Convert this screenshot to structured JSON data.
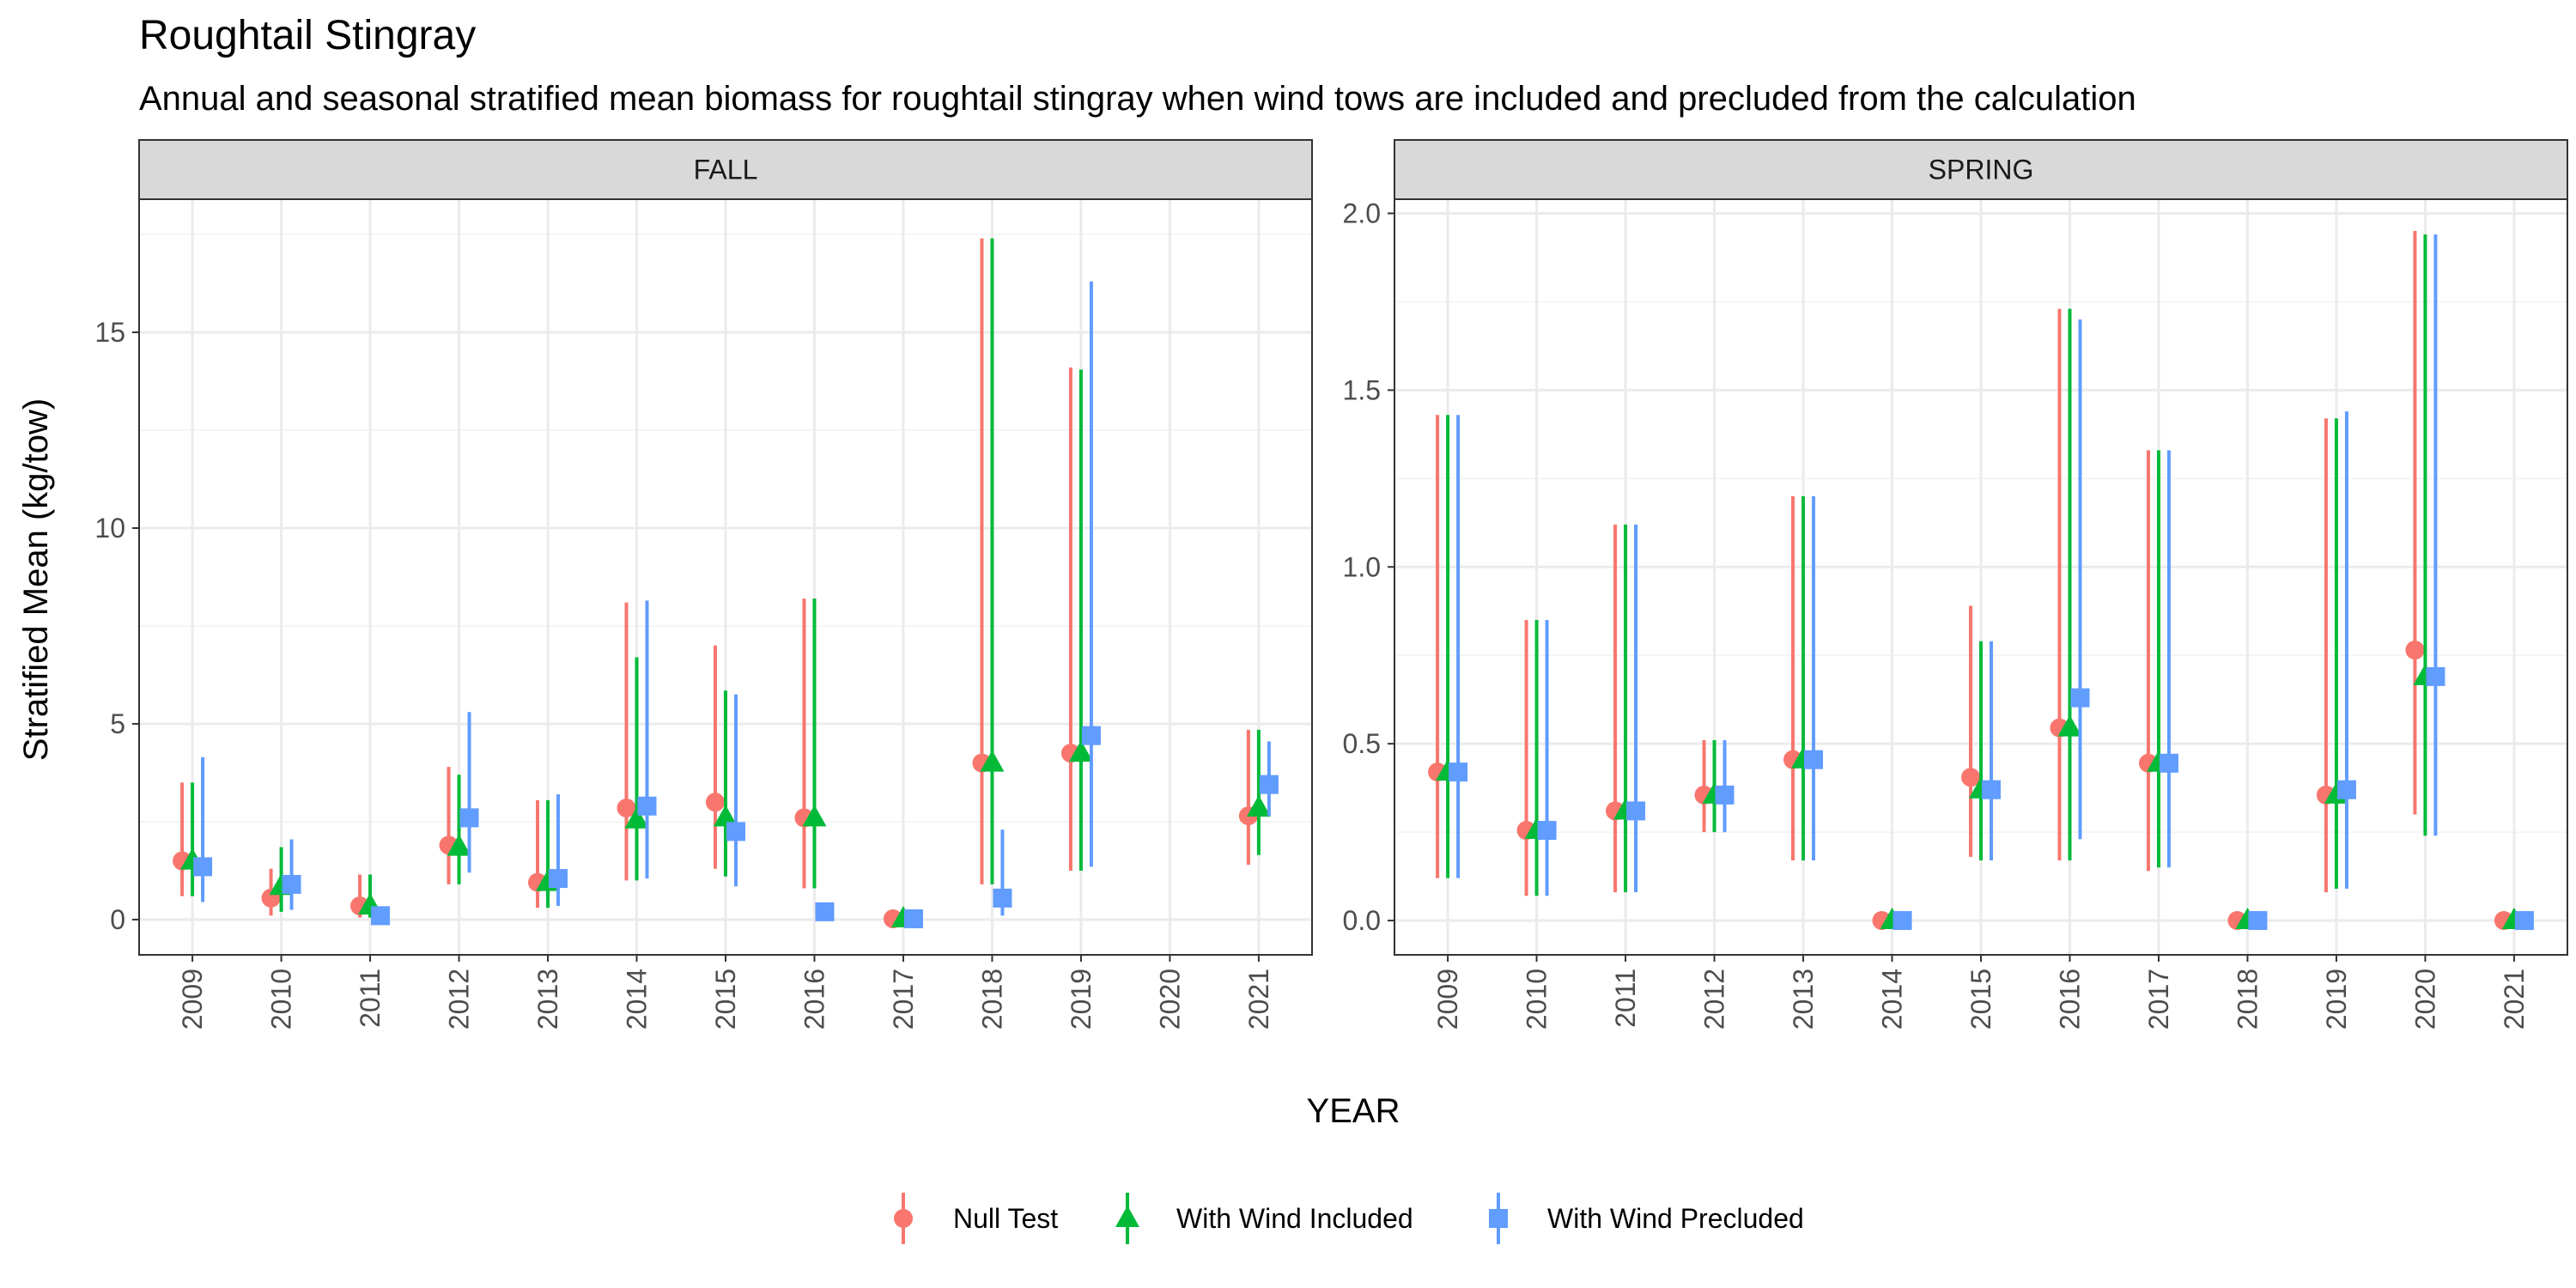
{
  "chart_data": {
    "type": "scatter",
    "title": "Roughtail Stingray",
    "subtitle": "Annual and seasonal stratified mean biomass for roughtail stingray when wind tows are included and precluded from the calculation",
    "xlabel": "YEAR",
    "ylabel": "Stratified Mean (kg/tow)",
    "categories": [
      "2009",
      "2010",
      "2011",
      "2012",
      "2013",
      "2014",
      "2015",
      "2016",
      "2017",
      "2018",
      "2019",
      "2020",
      "2021"
    ],
    "grid": true,
    "legend_position": "bottom",
    "legend": [
      {
        "name": "Null Test",
        "color": "#F8766D",
        "shape": "circle"
      },
      {
        "name": "With Wind Included",
        "color": "#00BA38",
        "shape": "triangle"
      },
      {
        "name": "With Wind Precluded",
        "color": "#619CFF",
        "shape": "square"
      }
    ],
    "panels": [
      {
        "strip": "FALL",
        "ylim": [
          -0.9,
          18.4
        ],
        "yticks": [
          0,
          5,
          10,
          15
        ],
        "series": [
          {
            "name": "Null Test",
            "points": [
              {
                "x": "2009",
                "y": 1.5,
                "lo": 0.6,
                "hi": 3.5
              },
              {
                "x": "2010",
                "y": 0.55,
                "lo": 0.1,
                "hi": 1.3
              },
              {
                "x": "2011",
                "y": 0.35,
                "lo": 0.05,
                "hi": 1.15
              },
              {
                "x": "2012",
                "y": 1.9,
                "lo": 0.9,
                "hi": 3.9
              },
              {
                "x": "2013",
                "y": 0.95,
                "lo": 0.3,
                "hi": 3.05
              },
              {
                "x": "2014",
                "y": 2.85,
                "lo": 1.0,
                "hi": 8.1
              },
              {
                "x": "2015",
                "y": 3.0,
                "lo": 1.3,
                "hi": 7.0
              },
              {
                "x": "2016",
                "y": 2.6,
                "lo": 0.8,
                "hi": 8.2
              },
              {
                "x": "2017",
                "y": 0.02,
                "lo": 0.0,
                "hi": 0.05
              },
              {
                "x": "2018",
                "y": 4.0,
                "lo": 0.9,
                "hi": 17.4
              },
              {
                "x": "2019",
                "y": 4.25,
                "lo": 1.25,
                "hi": 14.1
              },
              {
                "x": "2021",
                "y": 2.65,
                "lo": 1.4,
                "hi": 4.85
              }
            ]
          },
          {
            "name": "With Wind Included",
            "points": [
              {
                "x": "2009",
                "y": 1.5,
                "lo": 0.6,
                "hi": 3.5
              },
              {
                "x": "2010",
                "y": 0.85,
                "lo": 0.2,
                "hi": 1.85
              },
              {
                "x": "2011",
                "y": 0.35,
                "lo": 0.05,
                "hi": 1.15
              },
              {
                "x": "2012",
                "y": 1.85,
                "lo": 0.9,
                "hi": 3.7
              },
              {
                "x": "2013",
                "y": 0.95,
                "lo": 0.3,
                "hi": 3.05
              },
              {
                "x": "2014",
                "y": 2.55,
                "lo": 1.0,
                "hi": 6.7
              },
              {
                "x": "2015",
                "y": 2.6,
                "lo": 1.1,
                "hi": 5.85
              },
              {
                "x": "2016",
                "y": 2.6,
                "lo": 0.8,
                "hi": 8.2
              },
              {
                "x": "2017",
                "y": 0.02,
                "lo": 0.0,
                "hi": 0.05
              },
              {
                "x": "2018",
                "y": 4.0,
                "lo": 0.9,
                "hi": 17.4
              },
              {
                "x": "2019",
                "y": 4.25,
                "lo": 1.25,
                "hi": 14.05
              },
              {
                "x": "2021",
                "y": 2.85,
                "lo": 1.65,
                "hi": 4.85
              }
            ]
          },
          {
            "name": "With Wind Precluded",
            "points": [
              {
                "x": "2009",
                "y": 1.35,
                "lo": 0.45,
                "hi": 4.15
              },
              {
                "x": "2010",
                "y": 0.9,
                "lo": 0.25,
                "hi": 2.05
              },
              {
                "x": "2011",
                "y": 0.1,
                "lo": 0.0,
                "hi": 0.2
              },
              {
                "x": "2012",
                "y": 2.6,
                "lo": 1.2,
                "hi": 5.3
              },
              {
                "x": "2013",
                "y": 1.05,
                "lo": 0.35,
                "hi": 3.2
              },
              {
                "x": "2014",
                "y": 2.9,
                "lo": 1.05,
                "hi": 8.15
              },
              {
                "x": "2015",
                "y": 2.25,
                "lo": 0.85,
                "hi": 5.75
              },
              {
                "x": "2016",
                "y": 0.2,
                "lo": 0.0,
                "hi": 0.4
              },
              {
                "x": "2017",
                "y": 0.02,
                "lo": 0.0,
                "hi": 0.05
              },
              {
                "x": "2018",
                "y": 0.55,
                "lo": 0.1,
                "hi": 2.3
              },
              {
                "x": "2019",
                "y": 4.7,
                "lo": 1.35,
                "hi": 16.3
              },
              {
                "x": "2021",
                "y": 3.45,
                "lo": 2.65,
                "hi": 4.55
              }
            ]
          }
        ]
      },
      {
        "strip": "SPRING",
        "ylim": [
          -0.097,
          2.04
        ],
        "yticks": [
          0.0,
          0.5,
          1.0,
          1.5,
          2.0
        ],
        "series": [
          {
            "name": "Null Test",
            "points": [
              {
                "x": "2009",
                "y": 0.42,
                "lo": 0.12,
                "hi": 1.43
              },
              {
                "x": "2010",
                "y": 0.255,
                "lo": 0.07,
                "hi": 0.85
              },
              {
                "x": "2011",
                "y": 0.31,
                "lo": 0.08,
                "hi": 1.12
              },
              {
                "x": "2012",
                "y": 0.355,
                "lo": 0.25,
                "hi": 0.51
              },
              {
                "x": "2013",
                "y": 0.455,
                "lo": 0.17,
                "hi": 1.2
              },
              {
                "x": "2014",
                "y": 0.0,
                "lo": 0.0,
                "hi": 0.0
              },
              {
                "x": "2015",
                "y": 0.405,
                "lo": 0.18,
                "hi": 0.89
              },
              {
                "x": "2016",
                "y": 0.545,
                "lo": 0.17,
                "hi": 1.73
              },
              {
                "x": "2017",
                "y": 0.445,
                "lo": 0.14,
                "hi": 1.33
              },
              {
                "x": "2018",
                "y": 0.0,
                "lo": 0.0,
                "hi": 0.0
              },
              {
                "x": "2019",
                "y": 0.355,
                "lo": 0.08,
                "hi": 1.42
              },
              {
                "x": "2020",
                "y": 0.765,
                "lo": 0.3,
                "hi": 1.95
              },
              {
                "x": "2021",
                "y": 0.0,
                "lo": 0.0,
                "hi": 0.0
              }
            ]
          },
          {
            "name": "With Wind Included",
            "points": [
              {
                "x": "2009",
                "y": 0.42,
                "lo": 0.12,
                "hi": 1.43
              },
              {
                "x": "2010",
                "y": 0.255,
                "lo": 0.07,
                "hi": 0.85
              },
              {
                "x": "2011",
                "y": 0.31,
                "lo": 0.08,
                "hi": 1.12
              },
              {
                "x": "2012",
                "y": 0.355,
                "lo": 0.25,
                "hi": 0.51
              },
              {
                "x": "2013",
                "y": 0.455,
                "lo": 0.17,
                "hi": 1.2
              },
              {
                "x": "2014",
                "y": 0.0,
                "lo": 0.0,
                "hi": 0.0
              },
              {
                "x": "2015",
                "y": 0.37,
                "lo": 0.17,
                "hi": 0.79
              },
              {
                "x": "2016",
                "y": 0.545,
                "lo": 0.17,
                "hi": 1.73
              },
              {
                "x": "2017",
                "y": 0.445,
                "lo": 0.15,
                "hi": 1.33
              },
              {
                "x": "2018",
                "y": 0.0,
                "lo": 0.0,
                "hi": 0.0
              },
              {
                "x": "2019",
                "y": 0.355,
                "lo": 0.09,
                "hi": 1.42
              },
              {
                "x": "2020",
                "y": 0.69,
                "lo": 0.24,
                "hi": 1.94
              },
              {
                "x": "2021",
                "y": 0.0,
                "lo": 0.0,
                "hi": 0.0
              }
            ]
          },
          {
            "name": "With Wind Precluded",
            "points": [
              {
                "x": "2009",
                "y": 0.42,
                "lo": 0.12,
                "hi": 1.43
              },
              {
                "x": "2010",
                "y": 0.255,
                "lo": 0.07,
                "hi": 0.85
              },
              {
                "x": "2011",
                "y": 0.31,
                "lo": 0.08,
                "hi": 1.12
              },
              {
                "x": "2012",
                "y": 0.355,
                "lo": 0.25,
                "hi": 0.51
              },
              {
                "x": "2013",
                "y": 0.455,
                "lo": 0.17,
                "hi": 1.2
              },
              {
                "x": "2014",
                "y": 0.0,
                "lo": 0.0,
                "hi": 0.0
              },
              {
                "x": "2015",
                "y": 0.37,
                "lo": 0.17,
                "hi": 0.79
              },
              {
                "x": "2016",
                "y": 0.63,
                "lo": 0.23,
                "hi": 1.7
              },
              {
                "x": "2017",
                "y": 0.445,
                "lo": 0.15,
                "hi": 1.33
              },
              {
                "x": "2018",
                "y": 0.0,
                "lo": 0.0,
                "hi": 0.0
              },
              {
                "x": "2019",
                "y": 0.37,
                "lo": 0.09,
                "hi": 1.44
              },
              {
                "x": "2020",
                "y": 0.69,
                "lo": 0.24,
                "hi": 1.94
              },
              {
                "x": "2021",
                "y": 0.0,
                "lo": 0.0,
                "hi": 0.0
              }
            ]
          }
        ]
      }
    ]
  }
}
